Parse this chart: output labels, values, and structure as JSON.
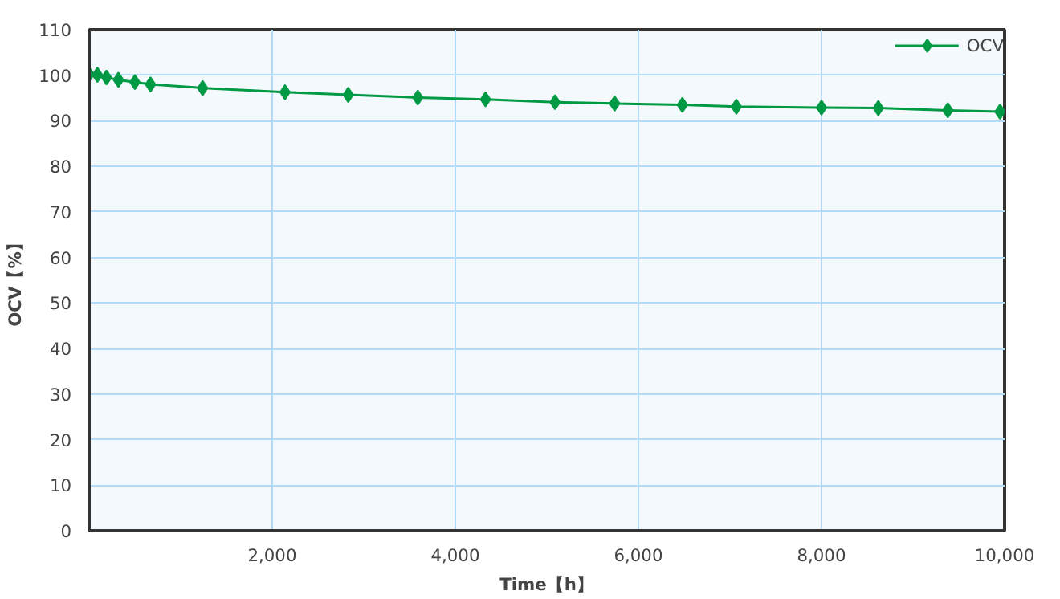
{
  "chart_data": {
    "type": "line",
    "xlabel": "Time【h】",
    "ylabel": "OCV【%】",
    "x": [
      0,
      90,
      190,
      320,
      500,
      670,
      1240,
      2140,
      2830,
      3590,
      4330,
      5090,
      5740,
      6480,
      7070,
      8000,
      8620,
      9380,
      9950
    ],
    "series": [
      {
        "name": "OCV",
        "color": "#009944",
        "values": [
          100.2,
          100.1,
          99.5,
          99,
          98.5,
          98,
          97.2,
          96.3,
          95.7,
          95.1,
          94.7,
          94.1,
          93.8,
          93.5,
          93.1,
          92.9,
          92.8,
          92.3,
          92.0
        ]
      }
    ],
    "xlim": [
      0,
      10000
    ],
    "xticks": [
      {
        "value": 2000,
        "label": "2,000"
      },
      {
        "value": 4000,
        "label": "4,000"
      },
      {
        "value": 6000,
        "label": "6,000"
      },
      {
        "value": 8000,
        "label": "8,000"
      },
      {
        "value": 10000,
        "label": "10,000"
      }
    ],
    "ylim": [
      0,
      110
    ],
    "yticks": [
      0,
      10,
      20,
      30,
      40,
      50,
      60,
      70,
      80,
      90,
      100,
      110
    ],
    "grid": true,
    "legend": "top right",
    "marker": "diamond",
    "line_style": "solid"
  }
}
